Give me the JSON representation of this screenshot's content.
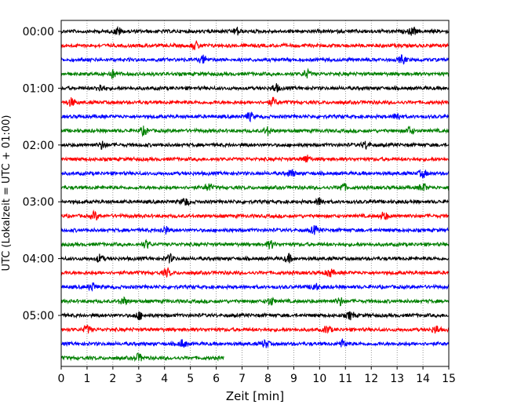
{
  "chart_data": {
    "type": "line",
    "title": "",
    "xlabel": "Zeit  [min]",
    "ylabel": "UTC (Lokalzeit = UTC + 01:00)",
    "xlim": [
      0,
      15
    ],
    "x_ticks": [
      "0",
      "1",
      "2",
      "3",
      "4",
      "5",
      "6",
      "7",
      "8",
      "9",
      "10",
      "11",
      "12",
      "13",
      "14",
      "15"
    ],
    "y_ticks": [
      "00:00",
      "01:00",
      "02:00",
      "03:00",
      "04:00",
      "05:00"
    ],
    "grid": "vertical dotted lines at each minute",
    "trace_interval_min": 15,
    "colors": [
      "#000000",
      "#ff0000",
      "#0000ff",
      "#008000"
    ],
    "traces": [
      {
        "start": "00:00",
        "color": "#000000",
        "end_min": 15,
        "events": [
          2.2,
          6.8,
          13.6
        ]
      },
      {
        "start": "00:15",
        "color": "#ff0000",
        "end_min": 15,
        "events": [
          5.2
        ]
      },
      {
        "start": "00:30",
        "color": "#0000ff",
        "end_min": 15,
        "events": [
          5.5,
          13.2
        ]
      },
      {
        "start": "00:45",
        "color": "#008000",
        "end_min": 15,
        "events": [
          2.0,
          9.5
        ]
      },
      {
        "start": "01:00",
        "color": "#000000",
        "end_min": 15,
        "events": [
          1.5,
          8.3
        ]
      },
      {
        "start": "01:15",
        "color": "#ff0000",
        "end_min": 15,
        "events": [
          0.4,
          8.2
        ]
      },
      {
        "start": "01:30",
        "color": "#0000ff",
        "end_min": 15,
        "events": [
          7.3,
          13.0
        ]
      },
      {
        "start": "01:45",
        "color": "#008000",
        "end_min": 15,
        "events": [
          3.2,
          8.0,
          13.5
        ]
      },
      {
        "start": "02:00",
        "color": "#000000",
        "end_min": 15,
        "events": [
          1.6,
          11.8
        ]
      },
      {
        "start": "02:15",
        "color": "#ff0000",
        "end_min": 15,
        "events": [
          9.5
        ]
      },
      {
        "start": "02:30",
        "color": "#0000ff",
        "end_min": 15,
        "events": [
          8.9,
          14.0
        ]
      },
      {
        "start": "02:45",
        "color": "#008000",
        "end_min": 15,
        "events": [
          5.7,
          10.9,
          14.0
        ]
      },
      {
        "start": "03:00",
        "color": "#000000",
        "end_min": 15,
        "events": [
          4.8,
          10.0
        ]
      },
      {
        "start": "03:15",
        "color": "#ff0000",
        "end_min": 15,
        "events": [
          1.3,
          12.5
        ]
      },
      {
        "start": "03:30",
        "color": "#0000ff",
        "end_min": 15,
        "events": [
          4.0,
          9.8
        ]
      },
      {
        "start": "03:45",
        "color": "#008000",
        "end_min": 15,
        "events": [
          3.3,
          8.1
        ]
      },
      {
        "start": "04:00",
        "color": "#000000",
        "end_min": 15,
        "events": [
          1.5,
          4.2,
          8.8
        ]
      },
      {
        "start": "04:15",
        "color": "#ff0000",
        "end_min": 15,
        "events": [
          4.1,
          10.4
        ]
      },
      {
        "start": "04:30",
        "color": "#0000ff",
        "end_min": 15,
        "events": [
          1.2,
          9.8
        ]
      },
      {
        "start": "04:45",
        "color": "#008000",
        "end_min": 15,
        "events": [
          2.4,
          8.1,
          10.8
        ]
      },
      {
        "start": "05:00",
        "color": "#000000",
        "end_min": 15,
        "events": [
          3.0,
          11.2
        ]
      },
      {
        "start": "05:15",
        "color": "#ff0000",
        "end_min": 15,
        "events": [
          1.0,
          10.3,
          14.5
        ]
      },
      {
        "start": "05:30",
        "color": "#0000ff",
        "end_min": 15,
        "events": [
          4.7,
          7.9,
          10.9
        ]
      },
      {
        "start": "05:45",
        "color": "#008000",
        "end_min": 6.3,
        "events": [
          3.0
        ]
      }
    ]
  }
}
